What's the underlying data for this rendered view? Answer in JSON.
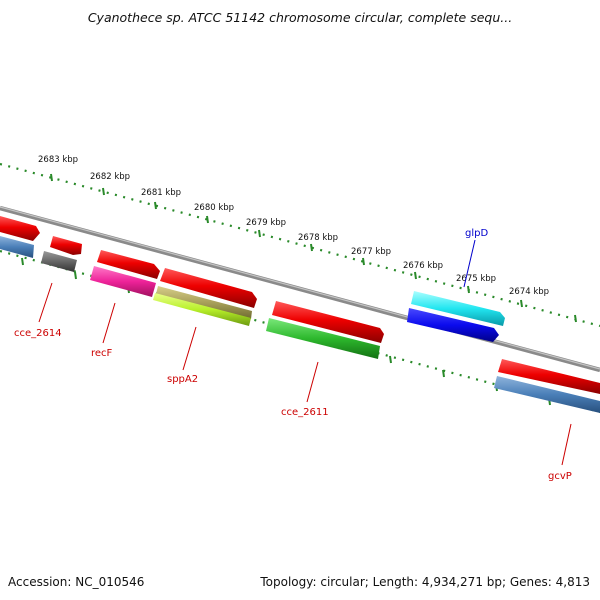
{
  "title": "Cyanothece sp. ATCC 51142 chromosome circular, complete sequ...",
  "footer": {
    "accession": "Accession: NC_010546",
    "summary": "Topology: circular; Length: 4,934,271 bp; Genes: 4,813"
  },
  "scale": {
    "unit_labels": [
      "2683 kbp",
      "2682 kbp",
      "2681 kbp",
      "2680 kbp",
      "2679 kbp",
      "2678 kbp",
      "2677 kbp",
      "2676 kbp",
      "2675 kbp",
      "2674 kbp"
    ]
  },
  "gene_labels": {
    "cce_2614": "cce_2614",
    "recF": "recF",
    "sppA2": "sppA2",
    "cce_2611": "cce_2611",
    "glpD": "glpD",
    "gcvP": "gcvP"
  },
  "colors": {
    "backbone": "#8a8a8a",
    "tick": "#2a8a2a",
    "label_red": "#cc0000",
    "label_blue": "#0000cc"
  }
}
